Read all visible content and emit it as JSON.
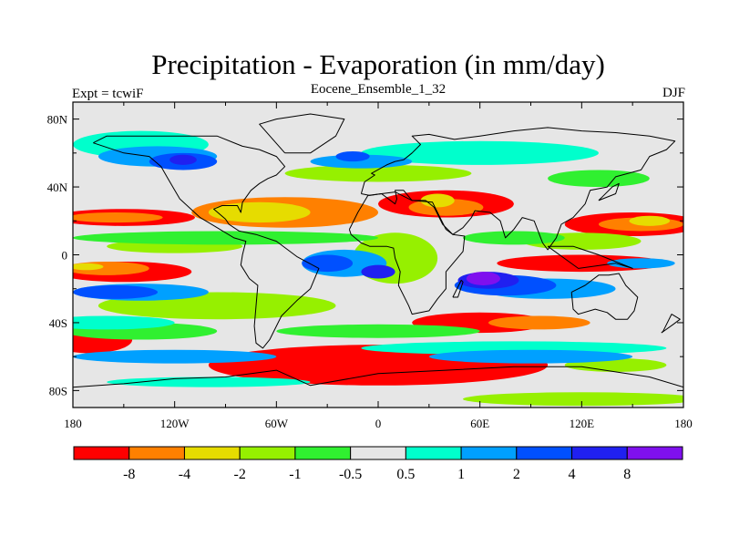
{
  "title": "Precipitation - Evaporation (in mm/day)",
  "left_label": "Expt = tcwiF",
  "center_label": "Eocene_Ensemble_1_32",
  "right_label": "DJF",
  "map": {
    "projection": "equirectangular",
    "lon_range": [
      -180,
      180
    ],
    "lat_range": [
      -90,
      90
    ],
    "lat_ticks": [
      "80N",
      "40N",
      "0",
      "40S",
      "80S"
    ],
    "lon_ticks": [
      "180",
      "120W",
      "60W",
      "0",
      "60E",
      "120E",
      "180"
    ],
    "background_color": "#e6e6e6",
    "coastline_color": "#000000"
  },
  "colorbar": {
    "colors": [
      "#ff0000",
      "#ff8000",
      "#e6dc00",
      "#96f000",
      "#30f030",
      "#e6e6e6",
      "#00ffcc",
      "#00a0ff",
      "#0050ff",
      "#2020f0",
      "#7f10ee"
    ],
    "labels": [
      "-8",
      "-4",
      "-2",
      "-1",
      "-0.5",
      "0.5",
      "1",
      "2",
      "4",
      "8"
    ]
  },
  "chart_data": {
    "type": "heatmap",
    "title": "Precipitation - Evaporation (in mm/day)",
    "xlabel": "",
    "ylabel": "",
    "xlim": [
      -180,
      180
    ],
    "ylim": [
      -90,
      90
    ],
    "levels": [
      -8,
      -4,
      -2,
      -1,
      -0.5,
      0.5,
      1,
      2,
      4,
      8
    ],
    "regions": [
      {
        "level": 0,
        "cx": -150,
        "cy": 22,
        "rx": 42,
        "ry": 5
      },
      {
        "level": 0,
        "cx": 40,
        "cy": 30,
        "rx": 40,
        "ry": 8
      },
      {
        "level": 0,
        "cx": 150,
        "cy": 18,
        "rx": 40,
        "ry": 7
      },
      {
        "level": 0,
        "cx": -150,
        "cy": -10,
        "rx": 40,
        "ry": 6
      },
      {
        "level": 0,
        "cx": 120,
        "cy": -5,
        "rx": 50,
        "ry": 5
      },
      {
        "level": 0,
        "cx": 60,
        "cy": -40,
        "rx": 40,
        "ry": 6
      },
      {
        "level": 0,
        "cx": -170,
        "cy": -50,
        "rx": 25,
        "ry": 8
      },
      {
        "level": 0,
        "cx": 0,
        "cy": -65,
        "rx": 100,
        "ry": 12
      },
      {
        "level": 1,
        "cx": -55,
        "cy": 25,
        "rx": 55,
        "ry": 9
      },
      {
        "level": 1,
        "cx": -155,
        "cy": 22,
        "rx": 28,
        "ry": 3
      },
      {
        "level": 1,
        "cx": 40,
        "cy": 28,
        "rx": 22,
        "ry": 5
      },
      {
        "level": 1,
        "cx": 155,
        "cy": 18,
        "rx": 25,
        "ry": 4
      },
      {
        "level": 1,
        "cx": -160,
        "cy": -8,
        "rx": 25,
        "ry": 4
      },
      {
        "level": 1,
        "cx": 95,
        "cy": -40,
        "rx": 30,
        "ry": 4
      },
      {
        "level": 2,
        "cx": -70,
        "cy": 25,
        "rx": 30,
        "ry": 6
      },
      {
        "level": 2,
        "cx": 35,
        "cy": 32,
        "rx": 10,
        "ry": 4
      },
      {
        "level": 2,
        "cx": 160,
        "cy": 20,
        "rx": 12,
        "ry": 3
      },
      {
        "level": 2,
        "cx": -172,
        "cy": -7,
        "rx": 10,
        "ry": 2
      },
      {
        "level": 3,
        "cx": 0,
        "cy": 48,
        "rx": 55,
        "ry": 5
      },
      {
        "level": 3,
        "cx": -95,
        "cy": -30,
        "rx": 70,
        "ry": 8
      },
      {
        "level": 3,
        "cx": 10,
        "cy": -2,
        "rx": 25,
        "ry": 15
      },
      {
        "level": 3,
        "cx": 120,
        "cy": 8,
        "rx": 35,
        "ry": 5
      },
      {
        "level": 3,
        "cx": -120,
        "cy": 5,
        "rx": 40,
        "ry": 4
      },
      {
        "level": 3,
        "cx": 120,
        "cy": -85,
        "rx": 70,
        "ry": 4
      },
      {
        "level": 3,
        "cx": 140,
        "cy": -65,
        "rx": 30,
        "ry": 4
      },
      {
        "level": 4,
        "cx": -90,
        "cy": 10,
        "rx": 90,
        "ry": 4
      },
      {
        "level": 4,
        "cx": -140,
        "cy": -45,
        "rx": 45,
        "ry": 5
      },
      {
        "level": 4,
        "cx": 80,
        "cy": 10,
        "rx": 30,
        "ry": 4
      },
      {
        "level": 4,
        "cx": 0,
        "cy": -45,
        "rx": 60,
        "ry": 4
      },
      {
        "level": 4,
        "cx": 130,
        "cy": 45,
        "rx": 30,
        "ry": 5
      },
      {
        "level": 6,
        "cx": -140,
        "cy": 65,
        "rx": 40,
        "ry": 8
      },
      {
        "level": 6,
        "cx": 60,
        "cy": 60,
        "rx": 70,
        "ry": 7
      },
      {
        "level": 6,
        "cx": -160,
        "cy": -40,
        "rx": 40,
        "ry": 4
      },
      {
        "level": 6,
        "cx": 80,
        "cy": -55,
        "rx": 90,
        "ry": 4
      },
      {
        "level": 6,
        "cx": -100,
        "cy": -75,
        "rx": 60,
        "ry": 3
      },
      {
        "level": 7,
        "cx": -130,
        "cy": 58,
        "rx": 35,
        "ry": 6
      },
      {
        "level": 7,
        "cx": -10,
        "cy": 55,
        "rx": 30,
        "ry": 4
      },
      {
        "level": 7,
        "cx": -20,
        "cy": -5,
        "rx": 25,
        "ry": 8
      },
      {
        "level": 7,
        "cx": 100,
        "cy": -20,
        "rx": 40,
        "ry": 6
      },
      {
        "level": 7,
        "cx": -140,
        "cy": -22,
        "rx": 40,
        "ry": 5
      },
      {
        "level": 7,
        "cx": -120,
        "cy": -60,
        "rx": 60,
        "ry": 4
      },
      {
        "level": 7,
        "cx": 90,
        "cy": -60,
        "rx": 60,
        "ry": 4
      },
      {
        "level": 7,
        "cx": 155,
        "cy": -5,
        "rx": 20,
        "ry": 3
      },
      {
        "level": 8,
        "cx": -115,
        "cy": 55,
        "rx": 20,
        "ry": 5
      },
      {
        "level": 8,
        "cx": -15,
        "cy": 58,
        "rx": 10,
        "ry": 3
      },
      {
        "level": 8,
        "cx": -30,
        "cy": -5,
        "rx": 15,
        "ry": 5
      },
      {
        "level": 8,
        "cx": 75,
        "cy": -18,
        "rx": 30,
        "ry": 6
      },
      {
        "level": 8,
        "cx": -155,
        "cy": -22,
        "rx": 25,
        "ry": 4
      },
      {
        "level": 9,
        "cx": -115,
        "cy": 56,
        "rx": 8,
        "ry": 3
      },
      {
        "level": 9,
        "cx": 65,
        "cy": -15,
        "rx": 18,
        "ry": 5
      },
      {
        "level": 9,
        "cx": 0,
        "cy": -10,
        "rx": 10,
        "ry": 4
      },
      {
        "level": 10,
        "cx": 62,
        "cy": -14,
        "rx": 10,
        "ry": 4
      }
    ],
    "coastlines": [
      [
        [
          -168,
          66
        ],
        [
          -150,
          60
        ],
        [
          -135,
          58
        ],
        [
          -128,
          52
        ],
        [
          -124,
          45
        ],
        [
          -117,
          33
        ],
        [
          -105,
          22
        ],
        [
          -95,
          16
        ],
        [
          -85,
          10
        ],
        [
          -78,
          8
        ],
        [
          -80,
          0
        ],
        [
          -81,
          -6
        ],
        [
          -76,
          -14
        ],
        [
          -71,
          -18
        ],
        [
          -72,
          -30
        ],
        [
          -73,
          -42
        ],
        [
          -72,
          -52
        ],
        [
          -68,
          -55
        ],
        [
          -64,
          -50
        ],
        [
          -57,
          -36
        ],
        [
          -48,
          -27
        ],
        [
          -40,
          -20
        ],
        [
          -35,
          -8
        ],
        [
          -48,
          -1
        ],
        [
          -60,
          8
        ],
        [
          -72,
          12
        ],
        [
          -82,
          14
        ],
        [
          -88,
          18
        ],
        [
          -90,
          21
        ],
        [
          -97,
          27
        ],
        [
          -92,
          29
        ],
        [
          -83,
          29
        ],
        [
          -81,
          25
        ],
        [
          -80,
          31
        ],
        [
          -75,
          38
        ],
        [
          -70,
          42
        ],
        [
          -65,
          45
        ],
        [
          -60,
          47
        ],
        [
          -55,
          52
        ],
        [
          -60,
          58
        ],
        [
          -70,
          62
        ],
        [
          -80,
          64
        ],
        [
          -95,
          70
        ],
        [
          -120,
          70
        ],
        [
          -140,
          70
        ],
        [
          -160,
          70
        ],
        [
          -168,
          66
        ]
      ],
      [
        [
          -10,
          36
        ],
        [
          -8,
          43
        ],
        [
          -2,
          47
        ],
        [
          -4,
          48
        ],
        [
          5,
          53
        ],
        [
          10,
          55
        ],
        [
          15,
          56
        ],
        [
          20,
          60
        ],
        [
          25,
          65
        ],
        [
          20,
          70
        ],
        [
          30,
          71
        ],
        [
          45,
          68
        ],
        [
          60,
          70
        ],
        [
          80,
          73
        ],
        [
          100,
          75
        ],
        [
          120,
          73
        ],
        [
          140,
          72
        ],
        [
          160,
          70
        ],
        [
          175,
          67
        ],
        [
          170,
          62
        ],
        [
          160,
          58
        ],
        [
          155,
          50
        ],
        [
          140,
          46
        ],
        [
          135,
          40
        ],
        [
          125,
          38
        ],
        [
          122,
          30
        ],
        [
          115,
          22
        ],
        [
          108,
          18
        ],
        [
          105,
          10
        ],
        [
          100,
          3
        ],
        [
          97,
          7
        ],
        [
          92,
          20
        ],
        [
          85,
          22
        ],
        [
          80,
          15
        ],
        [
          75,
          10
        ],
        [
          72,
          20
        ],
        [
          66,
          25
        ],
        [
          57,
          26
        ],
        [
          55,
          22
        ],
        [
          50,
          16
        ],
        [
          44,
          12
        ],
        [
          38,
          18
        ],
        [
          33,
          28
        ],
        [
          28,
          32
        ],
        [
          20,
          32
        ],
        [
          15,
          38
        ],
        [
          10,
          38
        ],
        [
          11,
          33
        ],
        [
          10,
          30
        ],
        [
          2,
          36
        ],
        [
          -5,
          35
        ],
        [
          -10,
          36
        ]
      ],
      [
        [
          -17,
          15
        ],
        [
          -12,
          25
        ],
        [
          -6,
          35
        ],
        [
          10,
          37
        ],
        [
          20,
          32
        ],
        [
          32,
          31
        ],
        [
          34,
          27
        ],
        [
          40,
          15
        ],
        [
          44,
          12
        ],
        [
          51,
          11
        ],
        [
          50,
          2
        ],
        [
          40,
          -10
        ],
        [
          40,
          -20
        ],
        [
          35,
          -26
        ],
        [
          30,
          -33
        ],
        [
          20,
          -35
        ],
        [
          18,
          -30
        ],
        [
          12,
          -18
        ],
        [
          13,
          -10
        ],
        [
          10,
          -2
        ],
        [
          9,
          4
        ],
        [
          5,
          5
        ],
        [
          -5,
          5
        ],
        [
          -10,
          7
        ],
        [
          -16,
          12
        ],
        [
          -17,
          15
        ]
      ],
      [
        [
          114,
          -22
        ],
        [
          122,
          -18
        ],
        [
          130,
          -12
        ],
        [
          136,
          -12
        ],
        [
          142,
          -11
        ],
        [
          146,
          -18
        ],
        [
          153,
          -25
        ],
        [
          151,
          -33
        ],
        [
          147,
          -38
        ],
        [
          140,
          -38
        ],
        [
          135,
          -34
        ],
        [
          128,
          -32
        ],
        [
          118,
          -35
        ],
        [
          115,
          -32
        ],
        [
          114,
          -22
        ]
      ],
      [
        [
          44,
          -25
        ],
        [
          49,
          -15
        ],
        [
          50,
          -16
        ],
        [
          47,
          -25
        ],
        [
          44,
          -25
        ]
      ],
      [
        [
          -55,
          60
        ],
        [
          -40,
          60
        ],
        [
          -25,
          70
        ],
        [
          -20,
          80
        ],
        [
          -40,
          83
        ],
        [
          -60,
          80
        ],
        [
          -70,
          77
        ],
        [
          -55,
          60
        ]
      ],
      [
        [
          -180,
          -78
        ],
        [
          -150,
          -76
        ],
        [
          -120,
          -73
        ],
        [
          -90,
          -72
        ],
        [
          -60,
          -68
        ],
        [
          -40,
          -77
        ],
        [
          0,
          -70
        ],
        [
          40,
          -68
        ],
        [
          80,
          -66
        ],
        [
          120,
          -66
        ],
        [
          160,
          -72
        ],
        [
          180,
          -78
        ]
      ],
      [
        [
          167,
          -46
        ],
        [
          174,
          -41
        ],
        [
          178,
          -38
        ],
        [
          173,
          -35
        ],
        [
          168,
          -45
        ],
        [
          167,
          -46
        ]
      ],
      [
        [
          100,
          5
        ],
        [
          118,
          -8
        ],
        [
          140,
          -5
        ],
        [
          150,
          -8
        ],
        [
          130,
          0
        ],
        [
          115,
          5
        ],
        [
          100,
          5
        ]
      ],
      [
        [
          130,
          32
        ],
        [
          140,
          36
        ],
        [
          142,
          42
        ],
        [
          138,
          40
        ],
        [
          132,
          34
        ],
        [
          130,
          32
        ]
      ]
    ]
  }
}
